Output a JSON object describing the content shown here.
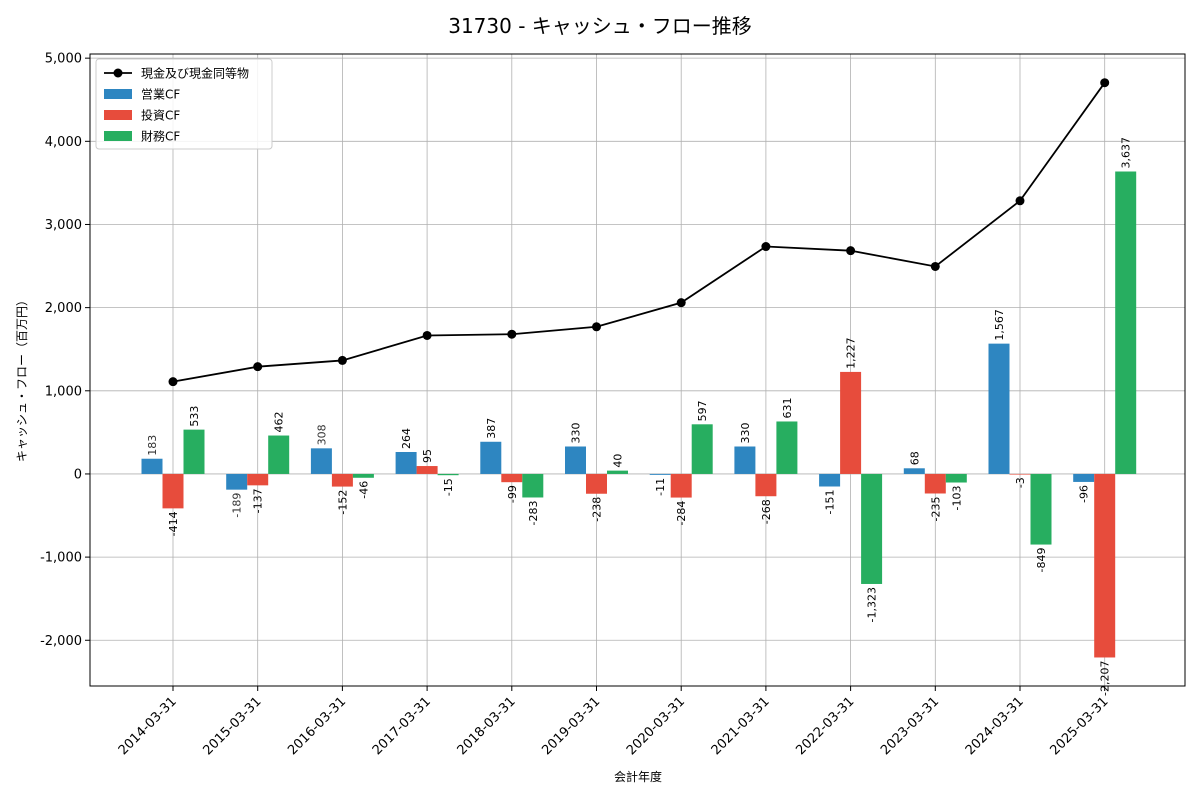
{
  "chart_data": {
    "type": "bar+line",
    "title": "31730 - キャッシュ・フロー推移",
    "xlabel": "会計年度",
    "ylabel": "キャッシュ・フロー（百万円）",
    "ylim": [
      -2550,
      5050
    ],
    "yticks": [
      -2000,
      -1000,
      0,
      1000,
      2000,
      3000,
      4000,
      5000
    ],
    "ytick_labels": [
      "-2,000",
      "-1,000",
      "0",
      "1,000",
      "2,000",
      "3,000",
      "4,000",
      "5,000"
    ],
    "grid": true,
    "legend_position": "top-left",
    "categories": [
      "2014-03-31",
      "2015-03-31",
      "2016-03-31",
      "2017-03-31",
      "2018-03-31",
      "2019-03-31",
      "2020-03-31",
      "2021-03-31",
      "2022-03-31",
      "2023-03-31",
      "2024-03-31",
      "2025-03-31"
    ],
    "series": [
      {
        "name": "営業CF",
        "kind": "bar",
        "color": "#2e86c1",
        "values": [
          183,
          -189,
          308,
          264,
          387,
          330,
          -11,
          330,
          -151,
          68,
          1567,
          -96
        ],
        "labels": [
          "183",
          "-189",
          "308",
          "264",
          "387",
          "330",
          "-11",
          "330",
          "-151",
          "68",
          "1,567",
          "-96"
        ]
      },
      {
        "name": "投資CF",
        "kind": "bar",
        "color": "#e74c3c",
        "values": [
          -414,
          -137,
          -152,
          95,
          -99,
          -238,
          -284,
          -268,
          1227,
          -235,
          -3,
          -2207
        ],
        "labels": [
          "-414",
          "-137",
          "-152",
          "95",
          "-99",
          "-238",
          "-284",
          "-268",
          "1,227",
          "-235",
          "-3",
          "-2,207"
        ]
      },
      {
        "name": "財務CF",
        "kind": "bar",
        "color": "#27ae60",
        "values": [
          533,
          462,
          -46,
          -15,
          -283,
          40,
          597,
          631,
          -1323,
          -103,
          -849,
          3637
        ],
        "labels": [
          "533",
          "462",
          "-46",
          "-15",
          "-283",
          "40",
          "597",
          "631",
          "-1,323",
          "-103",
          "-849",
          "3,637"
        ]
      },
      {
        "name": "現金及び現金同等物",
        "kind": "line",
        "color": "#000000",
        "values": [
          1110,
          1290,
          1365,
          1665,
          1680,
          1770,
          2060,
          2735,
          2685,
          2495,
          3285,
          4705
        ]
      }
    ]
  }
}
